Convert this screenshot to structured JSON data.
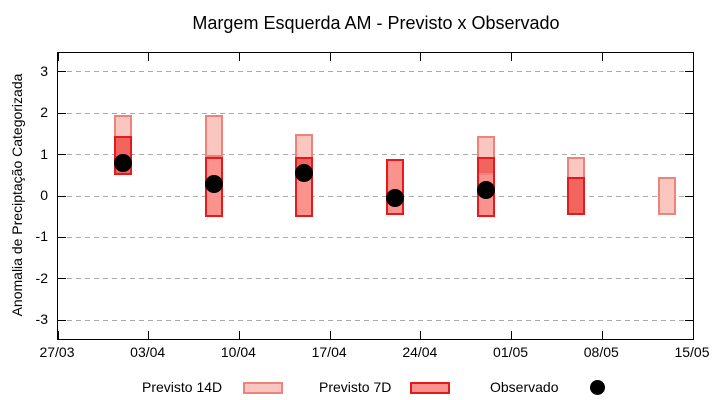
{
  "chart_data": {
    "type": "bar",
    "title": "Margem Esquerda AM - Previsto x Observado",
    "ylabel": "Anomalia de Preciptação Categorizada",
    "xlabel": "",
    "ylim": [
      -3.45,
      3.45
    ],
    "yticks": [
      3,
      2,
      1,
      0,
      -1,
      -2,
      -3
    ],
    "xtick_labels": [
      "27/03",
      "03/04",
      "10/04",
      "17/04",
      "24/04",
      "01/05",
      "08/05",
      "15/05"
    ],
    "xtick_interval_days": 7,
    "x_total_days": 49,
    "grid": true,
    "legend_position": "bottom",
    "legend": [
      {
        "label": "Previsto 14D",
        "marker": "box",
        "fill": "#f9c6c0",
        "border": "#ee837b"
      },
      {
        "label": "Previsto 7D",
        "marker": "box",
        "fill": "#fa938e",
        "border": "#e41a1c"
      },
      {
        "label": "Observado",
        "marker": "dot",
        "fill": "#000000"
      }
    ],
    "colors": {
      "previsto_14d_fill": "#f9c6c0",
      "previsto_14d_border": "#ee837b",
      "previsto_7d_fill": "#fa938e",
      "previsto_7d_border": "#e41a1c",
      "overlap_fill": "#f2655e",
      "observado": "#000000",
      "grid": "#aaaaaa",
      "frame": "#000000"
    },
    "series": [
      {
        "date": "01/04",
        "x_day": 5,
        "previsto_14d": [
          0.5,
          1.95
        ],
        "previsto_7d": [
          0.5,
          1.45
        ],
        "observado": 0.8
      },
      {
        "date": "08/04",
        "x_day": 12,
        "previsto_14d": [
          0.95,
          1.95
        ],
        "previsto_7d": [
          -0.5,
          0.95
        ],
        "observado": 0.3
      },
      {
        "date": "15/04",
        "x_day": 19,
        "previsto_14d": [
          0.7,
          1.5
        ],
        "previsto_7d": [
          -0.5,
          0.95
        ],
        "observado": 0.55
      },
      {
        "date": "22/04",
        "x_day": 26,
        "previsto_14d": null,
        "previsto_7d": [
          -0.45,
          0.9
        ],
        "observado": -0.05
      },
      {
        "date": "29/04",
        "x_day": 33,
        "previsto_14d": [
          0.5,
          1.45
        ],
        "previsto_7d": [
          -0.5,
          0.95
        ],
        "observado": 0.15
      },
      {
        "date": "06/05",
        "x_day": 40,
        "previsto_14d": [
          -0.45,
          0.95
        ],
        "previsto_7d": [
          -0.45,
          0.45
        ],
        "observado": null
      },
      {
        "date": "13/05",
        "x_day": 47,
        "previsto_14d": [
          -0.45,
          0.45
        ],
        "previsto_7d": null,
        "observado": null
      }
    ]
  }
}
